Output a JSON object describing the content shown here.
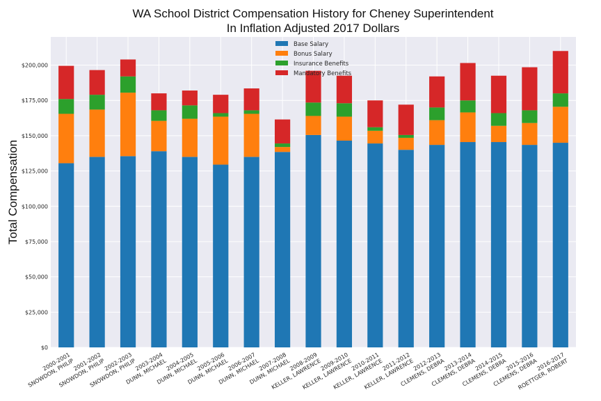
{
  "chart_data": {
    "type": "bar",
    "stacked": true,
    "title": "WA School District Compensation History for Cheney Superintendent",
    "subtitle": "In Inflation Adjusted 2017 Dollars",
    "xlabel": "",
    "ylabel": "Total Compensation",
    "ylim": [
      0,
      220000
    ],
    "yticks": [
      0,
      25000,
      50000,
      75000,
      100000,
      125000,
      150000,
      175000,
      200000
    ],
    "ytick_labels": [
      "$0",
      "$25,000",
      "$50,000",
      "$75,000",
      "$100,000",
      "$125,000",
      "$150,000",
      "$175,000",
      "$200,000"
    ],
    "grid": true,
    "legend_position": "top-center",
    "categories": [
      {
        "year": "2000-2001",
        "name": "SNOWDON, PHILIP"
      },
      {
        "year": "2001-2002",
        "name": "SNOWDON, PHILIP"
      },
      {
        "year": "2002-2003",
        "name": "SNOWDON, PHILIP"
      },
      {
        "year": "2003-2004",
        "name": "DUNN, MICHAEL"
      },
      {
        "year": "2004-2005",
        "name": "DUNN, MICHAEL"
      },
      {
        "year": "2005-2006",
        "name": "DUNN, MICHAEL"
      },
      {
        "year": "2006-2007",
        "name": "DUNN, MICHAEL"
      },
      {
        "year": "2007-2008",
        "name": "DUNN, MICHAEL"
      },
      {
        "year": "2008-2009",
        "name": "KELLER, LAWRENCE"
      },
      {
        "year": "2009-2010",
        "name": "KELLER, LAWRENCE"
      },
      {
        "year": "2010-2011",
        "name": "KELLER, LAWRENCE"
      },
      {
        "year": "2011-2012",
        "name": "KELLER, LAWRENCE"
      },
      {
        "year": "2012-2013",
        "name": "CLEMENS, DEBRA"
      },
      {
        "year": "2013-2014",
        "name": "CLEMENS, DEBRA"
      },
      {
        "year": "2014-2015",
        "name": "CLEMENS, DEBRA"
      },
      {
        "year": "2015-2016",
        "name": "CLEMENS, DEBRA"
      },
      {
        "year": "2016-2017",
        "name": "ROETTGER, ROBERT"
      }
    ],
    "series": [
      {
        "name": "Base Salary",
        "color": "#1f77b4",
        "values": [
          130500,
          135000,
          135500,
          139000,
          135000,
          129500,
          135000,
          138500,
          150500,
          146500,
          144500,
          140000,
          143500,
          145500,
          145500,
          143500,
          145000
        ]
      },
      {
        "name": "Bonus Salary",
        "color": "#ff7f0e",
        "values": [
          35000,
          33500,
          45000,
          21500,
          27000,
          34000,
          30500,
          3500,
          13500,
          17000,
          9000,
          8500,
          17500,
          21000,
          11500,
          15500,
          25500
        ]
      },
      {
        "name": "Insurance Benefits",
        "color": "#2ca02c",
        "values": [
          10500,
          10500,
          11500,
          7500,
          9500,
          2500,
          2500,
          2500,
          9500,
          9500,
          2500,
          2000,
          9000,
          8500,
          9000,
          9000,
          9500
        ]
      },
      {
        "name": "Mandatory Benefits",
        "color": "#d62728",
        "values": [
          23500,
          17500,
          12000,
          12000,
          10500,
          13000,
          15500,
          17000,
          22500,
          19500,
          19000,
          21500,
          22000,
          26500,
          26500,
          30500,
          30000
        ]
      }
    ]
  }
}
